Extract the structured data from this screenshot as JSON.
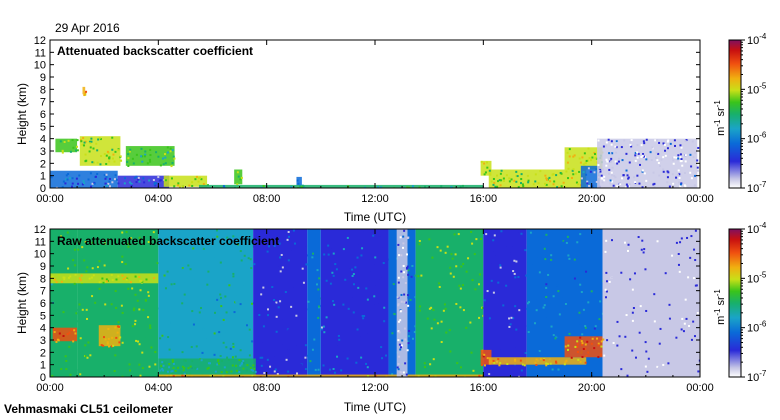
{
  "date": "29 Apr 2016",
  "footer": "Vehmasmaki CL51 ceilometer",
  "colors": {
    "colormap": [
      "#ffffff",
      "#c8c8e6",
      "#2a2ad8",
      "#0a6ad8",
      "#1aa4c8",
      "#18b06a",
      "#3ac41a",
      "#c8e018",
      "#f0b010",
      "#f05010",
      "#c81010",
      "#801060"
    ],
    "axis": "#000000",
    "background": "#ffffff"
  },
  "chart_data": [
    {
      "type": "heatmap",
      "title": "Attenuated backscatter coefficient",
      "xlabel": "Time (UTC)",
      "ylabel": "Height (km)",
      "xticks": [
        "00:00",
        "04:00",
        "08:00",
        "12:00",
        "16:00",
        "20:00",
        "00:00"
      ],
      "yticks": [
        "0",
        "1",
        "2",
        "3",
        "4",
        "5",
        "6",
        "7",
        "8",
        "9",
        "10",
        "11",
        "12"
      ],
      "xlim": [
        0,
        24
      ],
      "ylim": [
        0,
        12
      ],
      "colorbar": {
        "ticks": [
          "10-4",
          "10-5",
          "10-6",
          "10-7"
        ],
        "tick_base": "10",
        "tick_exps": [
          "-4",
          "-5",
          "-6",
          "-7"
        ],
        "label": "m-1 sr-1",
        "label_base1": "m",
        "label_exp1": "-1",
        "label_base2": " sr",
        "label_exp2": "-1",
        "range_log10": [
          -7,
          -4
        ]
      },
      "features": [
        {
          "t0": 0.0,
          "t1": 2.5,
          "h0": 0.0,
          "h1": 1.4,
          "level": 2.5
        },
        {
          "t0": 2.5,
          "t1": 4.4,
          "h0": 0.0,
          "h1": 1.0,
          "level": 2.3
        },
        {
          "t0": 0.2,
          "t1": 1.0,
          "h0": 2.9,
          "h1": 4.0,
          "level": 6.0
        },
        {
          "t0": 1.1,
          "t1": 2.6,
          "h0": 1.8,
          "h1": 4.2,
          "level": 6.5
        },
        {
          "t0": 2.8,
          "t1": 4.6,
          "h0": 1.8,
          "h1": 3.4,
          "level": 5.5
        },
        {
          "t0": 4.2,
          "t1": 5.8,
          "h0": 0.1,
          "h1": 1.0,
          "level": 7.0
        },
        {
          "t0": 6.8,
          "t1": 7.1,
          "h0": 0.3,
          "h1": 1.5,
          "level": 6.0
        },
        {
          "t0": 9.1,
          "t1": 9.3,
          "h0": 0.2,
          "h1": 0.9,
          "level": 3.0
        },
        {
          "t0": 5.5,
          "t1": 16.0,
          "h0": 0.0,
          "h1": 0.25,
          "level": 4.5
        },
        {
          "t0": 15.9,
          "t1": 16.3,
          "h0": 1.0,
          "h1": 2.2,
          "level": 7.0
        },
        {
          "t0": 16.2,
          "t1": 19.8,
          "h0": 0.0,
          "h1": 1.5,
          "level": 6.5
        },
        {
          "t0": 19.0,
          "t1": 20.4,
          "h0": 1.5,
          "h1": 3.3,
          "level": 7.0
        },
        {
          "t0": 19.6,
          "t1": 20.3,
          "h0": 0.0,
          "h1": 1.8,
          "level": 2.5
        },
        {
          "t0": 20.2,
          "t1": 23.9,
          "h0": 0.0,
          "h1": 4.0,
          "level": 1.2
        },
        {
          "t0": 1.2,
          "t1": 1.3,
          "h0": 7.6,
          "h1": 8.2,
          "level": 7.5
        }
      ]
    },
    {
      "type": "heatmap",
      "title": "Raw attenuated backscatter coefficient",
      "xlabel": "Time (UTC)",
      "ylabel": "Height (km)",
      "xticks": [
        "00:00",
        "04:00",
        "08:00",
        "12:00",
        "16:00",
        "20:00",
        "00:00"
      ],
      "yticks": [
        "0",
        "1",
        "2",
        "3",
        "4",
        "5",
        "6",
        "7",
        "8",
        "9",
        "10",
        "11",
        "12"
      ],
      "xlim": [
        0,
        24
      ],
      "ylim": [
        0,
        12
      ],
      "colorbar": {
        "ticks": [
          "10-4",
          "10-5",
          "10-6",
          "10-7"
        ],
        "tick_base": "10",
        "tick_exps": [
          "-4",
          "-5",
          "-6",
          "-7"
        ],
        "label": "m-1 sr-1",
        "label_base1": "m",
        "label_exp1": "-1",
        "label_base2": " sr",
        "label_exp2": "-1",
        "range_log10": [
          -7,
          -4
        ]
      },
      "background_segments": [
        {
          "t0": 0.0,
          "t1": 1.0,
          "level": 5.5
        },
        {
          "t0": 1.0,
          "t1": 4.0,
          "level": 6.0
        },
        {
          "t0": 4.0,
          "t1": 7.5,
          "level": 4.5
        },
        {
          "t0": 7.5,
          "t1": 9.5,
          "level": 2.2
        },
        {
          "t0": 9.5,
          "t1": 10.0,
          "level": 4.0
        },
        {
          "t0": 10.0,
          "t1": 12.5,
          "level": 2.6
        },
        {
          "t0": 12.5,
          "t1": 13.5,
          "level": 3.5
        },
        {
          "t0": 13.5,
          "t1": 16.0,
          "level": 6.0
        },
        {
          "t0": 16.0,
          "t1": 17.6,
          "level": 2.2
        },
        {
          "t0": 17.6,
          "t1": 20.4,
          "level": 3.6
        },
        {
          "t0": 20.4,
          "t1": 24.0,
          "level": 1.2
        }
      ],
      "features": [
        {
          "t0": 0.1,
          "t1": 1.0,
          "h0": 2.9,
          "h1": 4.0,
          "level": 8.5
        },
        {
          "t0": 1.8,
          "t1": 2.6,
          "h0": 2.5,
          "h1": 4.2,
          "level": 8.0
        },
        {
          "t0": 0.0,
          "t1": 4.0,
          "h0": 7.6,
          "h1": 8.4,
          "level": 7.0
        },
        {
          "t0": 4.0,
          "t1": 7.6,
          "h0": 0.0,
          "h1": 1.5,
          "level": 5.0
        },
        {
          "t0": 4.0,
          "t1": 16.0,
          "h0": 0.0,
          "h1": 0.2,
          "level": 8.0
        },
        {
          "t0": 12.8,
          "t1": 13.2,
          "h0": 0.0,
          "h1": 12.0,
          "level": 1.2
        },
        {
          "t0": 15.9,
          "t1": 16.3,
          "h0": 1.0,
          "h1": 2.2,
          "level": 9.0
        },
        {
          "t0": 16.2,
          "t1": 19.8,
          "h0": 1.0,
          "h1": 1.6,
          "level": 8.0
        },
        {
          "t0": 19.0,
          "t1": 20.4,
          "h0": 1.6,
          "h1": 3.3,
          "level": 8.5
        }
      ]
    }
  ]
}
